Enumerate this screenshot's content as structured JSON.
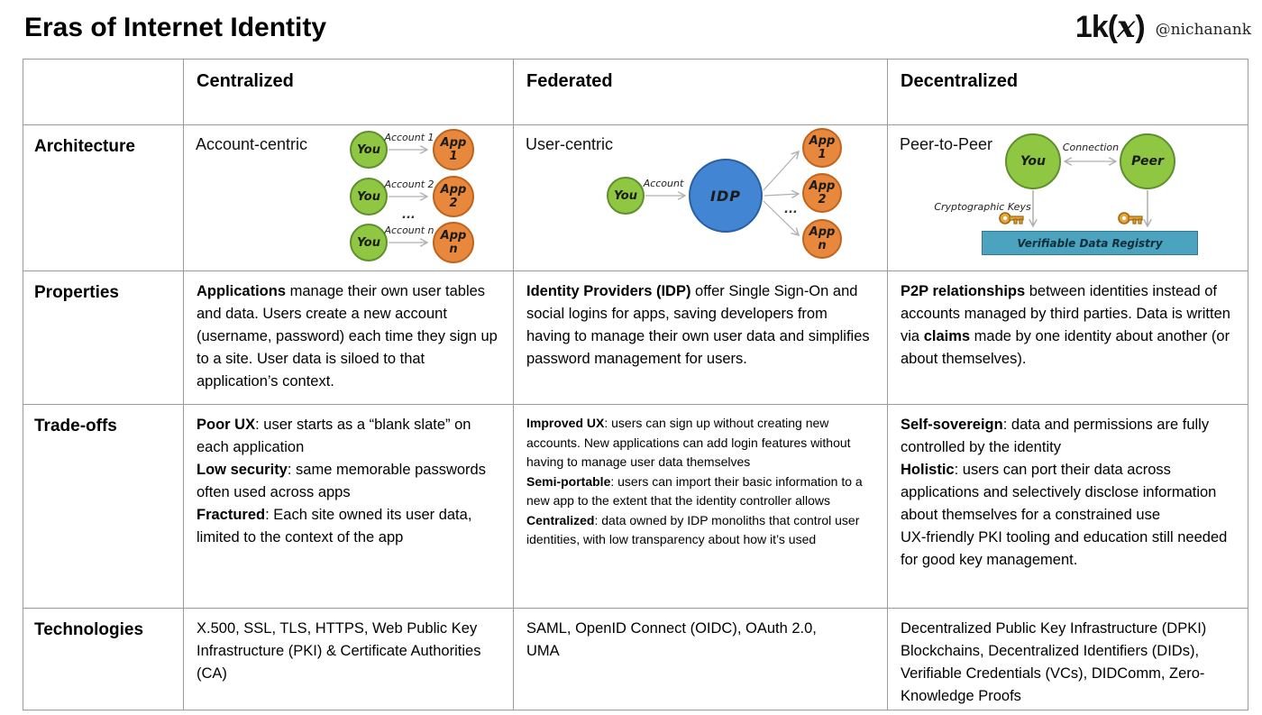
{
  "header": {
    "title": "Eras of Internet Identity",
    "logo_prefix": "1k(",
    "logo_x": "x",
    "logo_suffix": ")",
    "handle": "@nichanank"
  },
  "table": {
    "columns": [
      "",
      "Centralized",
      "Federated",
      "Decentralized"
    ]
  },
  "architecture_row": {
    "label": "Architecture",
    "centralized": {
      "caption": "Account-centric",
      "ellipsis": "...",
      "pairs": [
        {
          "you": "You",
          "account": "Account 1",
          "app": "App 1"
        },
        {
          "you": "You",
          "account": "Account 2",
          "app": "App 2"
        },
        {
          "you": "You",
          "account": "Account n",
          "app": "App n"
        }
      ]
    },
    "federated": {
      "caption": "User-centric",
      "you": "You",
      "account": "Account",
      "idp": "IDP",
      "ellipsis": "...",
      "apps": [
        "App 1",
        "App 2",
        "App n"
      ]
    },
    "decentralized": {
      "caption": "Peer-to-Peer",
      "you": "You",
      "peer": "Peer",
      "connection": "Connection",
      "keys_label": "Cryptographic Keys",
      "registry": "Verifiable Data Registry"
    }
  },
  "properties_row": {
    "label": "Properties",
    "centralized": [
      {
        "b": "Applications"
      },
      {
        "t": " manage their own user tables and data. Users create a new account (username, password) each time they sign up to a site. User data is siloed to that application’s context."
      }
    ],
    "federated": [
      {
        "b": "Identity Providers (IDP)"
      },
      {
        "t": " offer Single Sign-On and social logins for apps, saving developers from having to manage their own user data and simplifies password management for users."
      }
    ],
    "decentralized": [
      {
        "b": "P2P relationships"
      },
      {
        "t": " between identities instead of accounts managed by third parties. Data is written via "
      },
      {
        "b": "claims"
      },
      {
        "t": " made by one identity about another (or about themselves)."
      }
    ]
  },
  "tradeoffs_row": {
    "label": "Trade-offs",
    "centralized": [
      [
        {
          "b": "Poor UX"
        },
        {
          "t": ": user starts as a “blank slate” on each application"
        }
      ],
      [
        {
          "b": "Low security"
        },
        {
          "t": ": same memorable passwords often used across apps"
        }
      ],
      [
        {
          "b": "Fractured"
        },
        {
          "t": ": Each site owned its user data, limited to the context of the app"
        }
      ]
    ],
    "federated": [
      [
        {
          "b": "Improved UX"
        },
        {
          "t": ": users can sign up without creating new accounts. New applications can add login features without having to manage user data themselves"
        }
      ],
      [
        {
          "b": "Semi-portable"
        },
        {
          "t": ": users can import their basic information to a new app to the extent that the identity controller allows"
        }
      ],
      [
        {
          "b": "Centralized"
        },
        {
          "t": ": data owned by IDP monoliths that control user identities, with low transparency about how it’s used"
        }
      ]
    ],
    "decentralized": [
      [
        {
          "b": "Self-sovereign"
        },
        {
          "t": ": data and permissions are fully controlled by the identity"
        }
      ],
      [
        {
          "b": "Holistic"
        },
        {
          "t": ": users can port their data across applications and selectively disclose information about themselves for a constrained use"
        }
      ],
      [
        {
          "t": "UX-friendly PKI tooling and education still needed for good key management."
        }
      ]
    ]
  },
  "technologies_row": {
    "label": "Technologies",
    "centralized": "X.500, SSL, TLS, HTTPS, Web Public Key Infrastructure (PKI) & Certificate Authorities (CA)",
    "federated": "SAML, OpenID Connect (OIDC), OAuth 2.0, UMA",
    "decentralized": "Decentralized Public Key Infrastructure (DPKI) Blockchains, Decentralized Identifiers (DIDs), Verifiable Credentials (VCs), DIDComm, Zero-Knowledge Proofs"
  },
  "colors": {
    "node_green": "#8fc742",
    "node_orange": "#e8883c",
    "node_blue": "#4285d2",
    "registry_teal": "#4ba3bf",
    "key_gold": "#e8a33d",
    "grid_gray": "#9a9a9a"
  }
}
